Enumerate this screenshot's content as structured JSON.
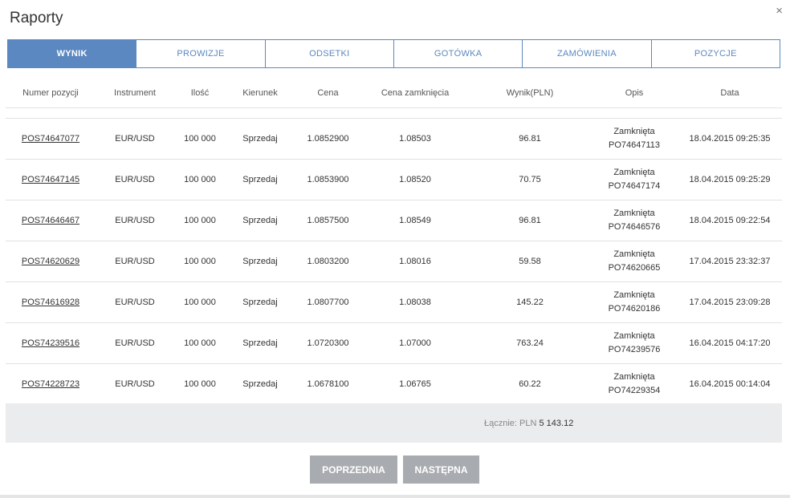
{
  "dialog": {
    "title": "Raporty",
    "close_glyph": "×"
  },
  "tabs": [
    {
      "label": "WYNIK",
      "active": true
    },
    {
      "label": "PROWIZJE"
    },
    {
      "label": "ODSETKI"
    },
    {
      "label": "GOTÓWKA"
    },
    {
      "label": "ZAMÓWIENIA"
    },
    {
      "label": "POZYCJE"
    }
  ],
  "table": {
    "headers": [
      "Numer pozycji",
      "Instrument",
      "Ilość",
      "Kierunek",
      "Cena",
      "Cena zamknięcia",
      "Wynik(PLN)",
      "Opis",
      "Data"
    ],
    "rows": [
      {
        "pos": "POS74647077",
        "instrument": "EUR/USD",
        "qty": "100 000",
        "direction": "Sprzedaj",
        "price": "1.0852900",
        "close_price": "1.08503",
        "result": "96.81",
        "desc_status": "Zamknięta",
        "desc_order": "PO74647113",
        "date": "18.04.2015 09:25:35"
      },
      {
        "pos": "POS74647145",
        "instrument": "EUR/USD",
        "qty": "100 000",
        "direction": "Sprzedaj",
        "price": "1.0853900",
        "close_price": "1.08520",
        "result": "70.75",
        "desc_status": "Zamknięta",
        "desc_order": "PO74647174",
        "date": "18.04.2015 09:25:29"
      },
      {
        "pos": "POS74646467",
        "instrument": "EUR/USD",
        "qty": "100 000",
        "direction": "Sprzedaj",
        "price": "1.0857500",
        "close_price": "1.08549",
        "result": "96.81",
        "desc_status": "Zamknięta",
        "desc_order": "PO74646576",
        "date": "18.04.2015 09:22:54"
      },
      {
        "pos": "POS74620629",
        "instrument": "EUR/USD",
        "qty": "100 000",
        "direction": "Sprzedaj",
        "price": "1.0803200",
        "close_price": "1.08016",
        "result": "59.58",
        "desc_status": "Zamknięta",
        "desc_order": "PO74620665",
        "date": "17.04.2015 23:32:37"
      },
      {
        "pos": "POS74616928",
        "instrument": "EUR/USD",
        "qty": "100 000",
        "direction": "Sprzedaj",
        "price": "1.0807700",
        "close_price": "1.08038",
        "result": "145.22",
        "desc_status": "Zamknięta",
        "desc_order": "PO74620186",
        "date": "17.04.2015 23:09:28"
      },
      {
        "pos": "POS74239516",
        "instrument": "EUR/USD",
        "qty": "100 000",
        "direction": "Sprzedaj",
        "price": "1.0720300",
        "close_price": "1.07000",
        "result": "763.24",
        "desc_status": "Zamknięta",
        "desc_order": "PO74239576",
        "date": "16.04.2015 04:17:20"
      },
      {
        "pos": "POS74228723",
        "instrument": "EUR/USD",
        "qty": "100 000",
        "direction": "Sprzedaj",
        "price": "1.0678100",
        "close_price": "1.06765",
        "result": "60.22",
        "desc_status": "Zamknięta",
        "desc_order": "PO74229354",
        "date": "16.04.2015 00:14:04"
      }
    ]
  },
  "summary": {
    "label": "Łącznie: PLN",
    "value": "5 143.12"
  },
  "pagination": {
    "prev_label": "POPRZEDNIA",
    "next_label": "NASTĘPNA"
  },
  "colors": {
    "accent": "#5b88c0",
    "button": "#a8abaf",
    "summary_bg": "#eaecee"
  }
}
